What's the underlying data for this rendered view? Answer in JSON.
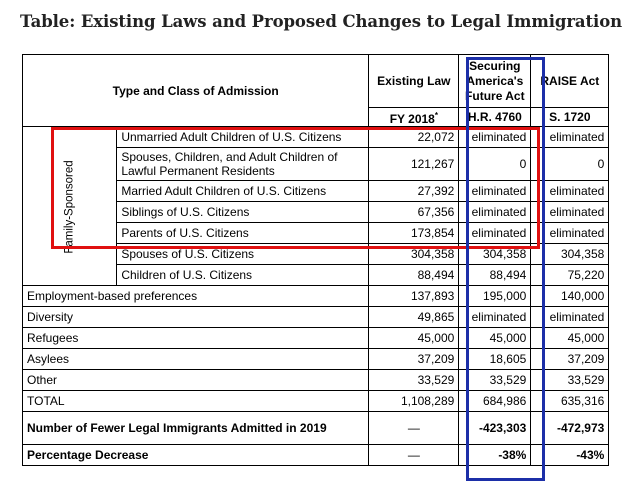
{
  "title": "Table: Existing Laws and Proposed Changes to Legal Immigration",
  "header": {
    "type_class": "Type and Class of Admission",
    "existing_law": "Existing Law",
    "fy": "FY 2018",
    "fy_mark": "*",
    "securing_1": "Securing",
    "securing_2": "America's",
    "securing_3": "Future Act",
    "hr": "H.R. 4760",
    "raise": "RAISE Act",
    "s": "S. 1720"
  },
  "family_label": "Family-Sponsored",
  "family_rows": [
    {
      "label": "Unmarried Adult Children of U.S. Citizens",
      "existing": "22,072",
      "securing": "eliminated",
      "raise": "eliminated"
    },
    {
      "label": "Spouses, Children, and Adult Children of Lawful Permanent Residents",
      "existing": "121,267",
      "securing": "0",
      "raise": "0"
    },
    {
      "label": "Married Adult Children of U.S. Citizens",
      "existing": "27,392",
      "securing": "eliminated",
      "raise": "eliminated"
    },
    {
      "label": "Siblings of U.S. Citizens",
      "existing": "67,356",
      "securing": "eliminated",
      "raise": "eliminated"
    },
    {
      "label": "Parents of U.S. Citizens",
      "existing": "173,854",
      "securing": "eliminated",
      "raise": "eliminated"
    },
    {
      "label": "Spouses of U.S. Citizens",
      "existing": "304,358",
      "securing": "304,358",
      "raise": "304,358"
    },
    {
      "label": "Children of U.S. Citizens",
      "existing": "88,494",
      "securing": "88,494",
      "raise": "75,220"
    }
  ],
  "other_rows": [
    {
      "label": "Employment-based preferences",
      "existing": "137,893",
      "securing": "195,000",
      "raise": "140,000"
    },
    {
      "label": "Diversity",
      "existing": "49,865",
      "securing": "eliminated",
      "raise": "eliminated"
    },
    {
      "label": "Refugees",
      "existing": "45,000",
      "securing": "45,000",
      "raise": "45,000"
    },
    {
      "label": "Asylees",
      "existing": "37,209",
      "securing": "18,605",
      "raise": "37,209"
    },
    {
      "label": "Other",
      "existing": "33,529",
      "securing": "33,529",
      "raise": "33,529"
    },
    {
      "label": "TOTAL",
      "existing": "1,108,289",
      "securing": "684,986",
      "raise": "635,316"
    }
  ],
  "summary_rows": [
    {
      "label": "Number of Fewer Legal Immigrants Admitted in 2019",
      "existing": "—",
      "securing": "-423,303",
      "raise": "-472,973"
    },
    {
      "label": "Percentage Decrease",
      "existing": "—",
      "securing": "-38%",
      "raise": "-43%"
    }
  ],
  "colors": {
    "highlight_red": "#e01010",
    "highlight_blue": "#1c2fa8",
    "title": "#222222"
  }
}
